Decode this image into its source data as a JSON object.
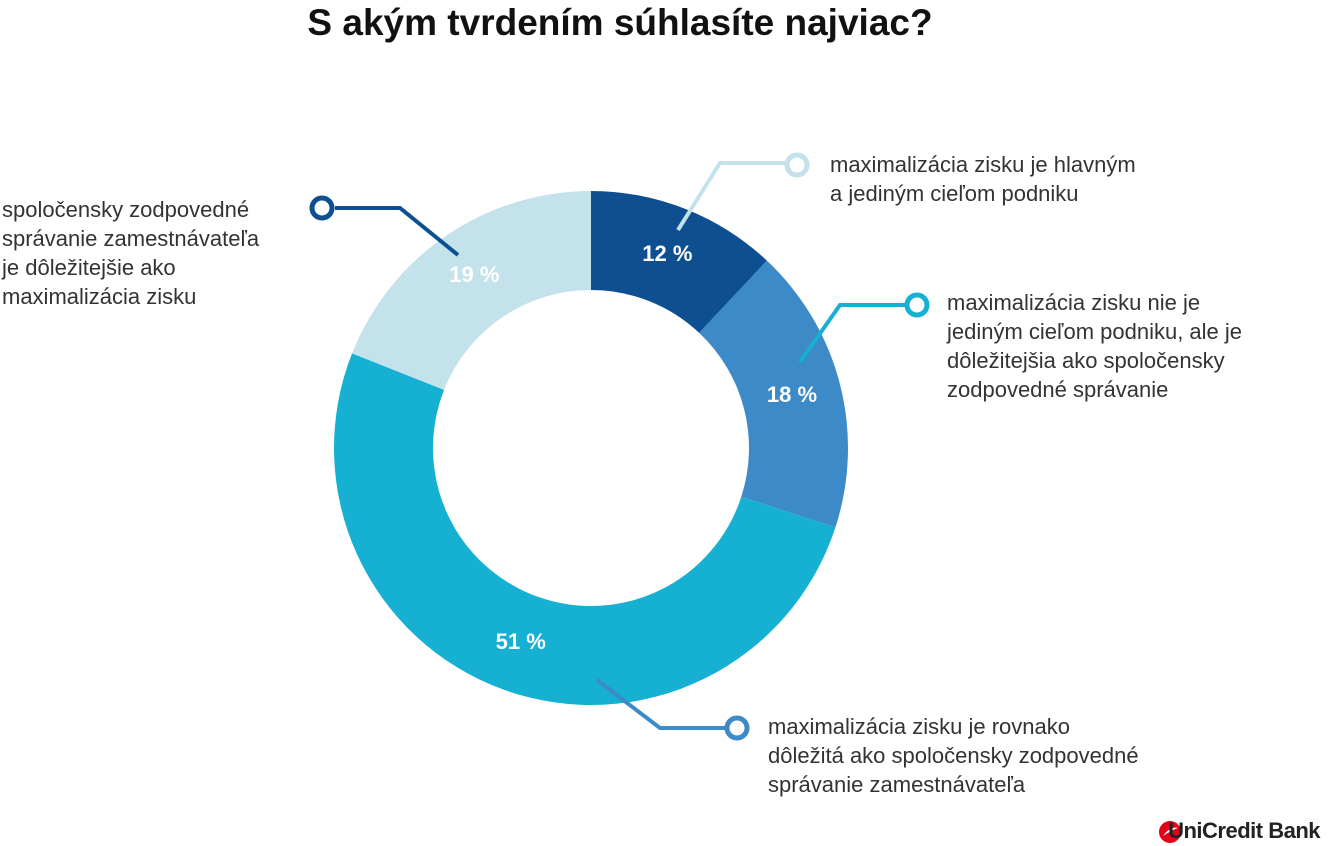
{
  "chart_data": {
    "type": "pie",
    "title": "S akým tvrdením súhlasíte najviac?",
    "categories": [
      "maximalizácia zisku je hlavným\na jediným cieľom podniku",
      "maximalizácia zisku nie je\njediným cieľom podniku, ale je\ndôležitejšia ako spoločensky\nzodpovedné správanie",
      "maximalizácia zisku je rovnako\ndôležitá ako spoločensky zodpovedné\nsprávanie zamestnávateľa",
      "spoločensky zodpovedné\nsprávanie zamestnávateľa\nje dôležitejšie ako\nmaximalizácia zisku"
    ],
    "values": [
      12,
      18,
      51,
      19
    ],
    "value_labels": [
      "12 %",
      "18 %",
      "51 %",
      "19 %"
    ],
    "colors": [
      "#0d4f91",
      "#3d8ac8",
      "#15b0d2",
      "#c3e2ec"
    ],
    "donut": true
  },
  "brand": "UniCredit Bank"
}
